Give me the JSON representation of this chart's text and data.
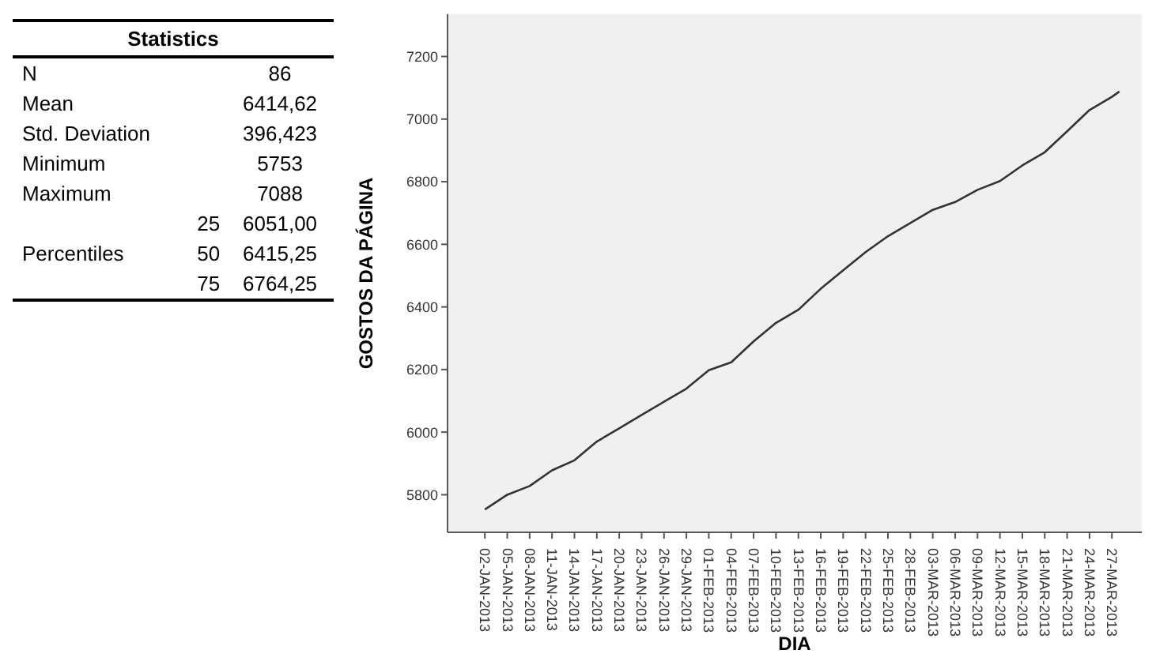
{
  "chart_data": [
    {
      "type": "other",
      "title": "Statistics",
      "categories": [
        "N",
        "Mean",
        "Std. Deviation",
        "Minimum",
        "Maximum",
        null,
        "Percentiles",
        null
      ],
      "y2_categories": [
        null,
        null,
        null,
        null,
        null,
        "25",
        "50",
        "75"
      ],
      "value_labels": [
        "86",
        "6414,62",
        "396,423",
        "5753",
        "7088",
        "6051,00",
        "6415,25",
        "6764,25"
      ]
    },
    {
      "type": "line",
      "xlabel": "DIA",
      "ylabel": "GOSTOS DA PÁGINA",
      "xlim": [
        "2012-12-28",
        "2013-03-31"
      ],
      "ylim": [
        5680,
        7335
      ],
      "yticks": [
        5800,
        6000,
        6200,
        6400,
        6600,
        6800,
        7000,
        7200
      ],
      "xticks": [
        {
          "value": "2013-01-02",
          "label": "02-JAN-2013"
        },
        {
          "value": "2013-01-05",
          "label": "05-JAN-2013"
        },
        {
          "value": "2013-01-08",
          "label": "08-JAN-2013"
        },
        {
          "value": "2013-01-11",
          "label": "11-JAN-2013"
        },
        {
          "value": "2013-01-14",
          "label": "14-JAN-2013"
        },
        {
          "value": "2013-01-17",
          "label": "17-JAN-2013"
        },
        {
          "value": "2013-01-20",
          "label": "20-JAN-2013"
        },
        {
          "value": "2013-01-23",
          "label": "23-JAN-2013"
        },
        {
          "value": "2013-01-26",
          "label": "26-JAN-2013"
        },
        {
          "value": "2013-01-29",
          "label": "29-JAN-2013"
        },
        {
          "value": "2013-02-01",
          "label": "01-FEB-2013"
        },
        {
          "value": "2013-02-04",
          "label": "04-FEB-2013"
        },
        {
          "value": "2013-02-07",
          "label": "07-FEB-2013"
        },
        {
          "value": "2013-02-10",
          "label": "10-FEB-2013"
        },
        {
          "value": "2013-02-13",
          "label": "13-FEB-2013"
        },
        {
          "value": "2013-02-16",
          "label": "16-FEB-2013"
        },
        {
          "value": "2013-02-19",
          "label": "19-FEB-2013"
        },
        {
          "value": "2013-02-22",
          "label": "22-FEB-2013"
        },
        {
          "value": "2013-02-25",
          "label": "25-FEB-2013"
        },
        {
          "value": "2013-02-28",
          "label": "28-FEB-2013"
        },
        {
          "value": "2013-03-03",
          "label": "03-MAR-2013"
        },
        {
          "value": "2013-03-06",
          "label": "06-MAR-2013"
        },
        {
          "value": "2013-03-09",
          "label": "09-MAR-2013"
        },
        {
          "value": "2013-03-12",
          "label": "12-MAR-2013"
        },
        {
          "value": "2013-03-15",
          "label": "15-MAR-2013"
        },
        {
          "value": "2013-03-18",
          "label": "18-MAR-2013"
        },
        {
          "value": "2013-03-21",
          "label": "21-MAR-2013"
        },
        {
          "value": "2013-03-24",
          "label": "24-MAR-2013"
        },
        {
          "value": "2013-03-27",
          "label": "27-MAR-2013"
        }
      ],
      "series": [
        {
          "color": "#333333",
          "x": [
            "2013-01-02",
            "2013-01-05",
            "2013-01-08",
            "2013-01-11",
            "2013-01-14",
            "2013-01-17",
            "2013-01-20",
            "2013-01-23",
            "2013-01-26",
            "2013-01-29",
            "2013-02-01",
            "2013-02-04",
            "2013-02-07",
            "2013-02-10",
            "2013-02-13",
            "2013-02-16",
            "2013-02-19",
            "2013-02-22",
            "2013-02-25",
            "2013-02-28",
            "2013-03-03",
            "2013-03-06",
            "2013-03-09",
            "2013-03-12",
            "2013-03-15",
            "2013-03-18",
            "2013-03-21",
            "2013-03-24",
            "2013-03-27",
            "2013-03-28"
          ],
          "values": [
            5753,
            5800,
            5828,
            5878,
            5910,
            5970,
            6012,
            6055,
            6097,
            6139,
            6198,
            6223,
            6290,
            6349,
            6391,
            6458,
            6517,
            6575,
            6626,
            6668,
            6710,
            6735,
            6774,
            6802,
            6852,
            6894,
            6961,
            7029,
            7071,
            7088
          ]
        }
      ]
    }
  ]
}
